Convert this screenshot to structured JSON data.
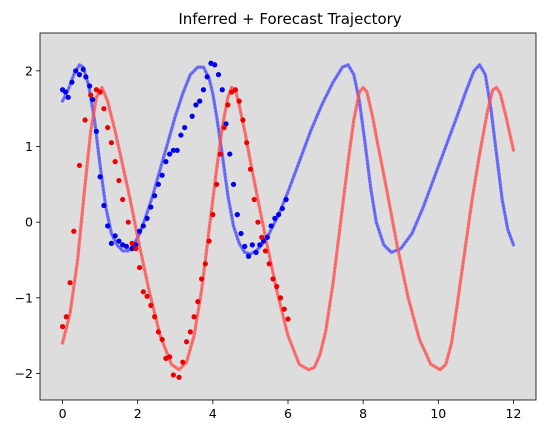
{
  "chart_data": {
    "type": "line",
    "title": "Inferred + Forecast Trajectory",
    "xlabel": "",
    "ylabel": "",
    "xlim": [
      -0.6,
      12.6
    ],
    "ylim": [
      -2.35,
      2.5
    ],
    "xticks": [
      0,
      2,
      4,
      6,
      8,
      10,
      12
    ],
    "yticks": [
      -2,
      -1,
      0,
      1,
      2
    ],
    "grid": false,
    "background": "#dddddd",
    "series": [
      {
        "kind": "inferred-line",
        "color": "#4d4dff",
        "x": [
          0,
          0.15,
          0.3,
          0.45,
          0.55,
          0.7,
          0.85,
          1.0,
          1.15,
          1.3,
          1.45,
          1.6,
          1.75,
          1.9,
          2.05,
          2.2,
          2.4,
          2.6,
          2.8,
          3.0,
          3.2,
          3.4,
          3.6,
          3.75,
          3.9,
          4.0,
          4.1,
          4.25,
          4.4,
          4.55,
          4.7,
          4.85,
          5.0,
          5.15,
          5.3,
          5.5,
          5.75,
          6.0,
          6.3,
          6.6,
          6.9,
          7.2,
          7.45,
          7.6,
          7.75,
          7.9,
          8.05,
          8.2,
          8.35,
          8.55,
          8.75,
          9.0,
          9.3,
          9.6,
          9.9,
          10.2,
          10.5,
          10.75,
          10.95,
          11.1,
          11.25,
          11.4,
          11.55,
          11.7,
          11.85,
          12.0
        ],
        "y": [
          1.6,
          1.75,
          1.95,
          2.08,
          2.05,
          1.8,
          1.35,
          0.75,
          0.2,
          -0.15,
          -0.3,
          -0.38,
          -0.38,
          -0.3,
          -0.15,
          0.05,
          0.35,
          0.7,
          1.05,
          1.4,
          1.7,
          1.95,
          2.05,
          2.05,
          1.9,
          1.7,
          1.4,
          0.9,
          0.35,
          -0.05,
          -0.28,
          -0.4,
          -0.42,
          -0.38,
          -0.3,
          -0.15,
          0.1,
          0.4,
          0.8,
          1.2,
          1.55,
          1.85,
          2.05,
          2.08,
          1.95,
          1.6,
          1.05,
          0.45,
          0.0,
          -0.3,
          -0.4,
          -0.35,
          -0.15,
          0.2,
          0.6,
          1.0,
          1.4,
          1.75,
          2.0,
          2.08,
          1.95,
          1.5,
          0.9,
          0.3,
          -0.1,
          -0.3
        ]
      },
      {
        "kind": "inferred-line",
        "color": "#ff5050",
        "x": [
          0,
          0.2,
          0.4,
          0.6,
          0.75,
          0.9,
          1.05,
          1.2,
          1.4,
          1.6,
          1.8,
          2.0,
          2.3,
          2.6,
          2.9,
          3.1,
          3.3,
          3.5,
          3.7,
          3.9,
          4.1,
          4.25,
          4.4,
          4.5,
          4.6,
          4.7,
          4.85,
          5.0,
          5.2,
          5.4,
          5.7,
          6.0,
          6.3,
          6.55,
          6.7,
          6.85,
          7.0,
          7.2,
          7.4,
          7.6,
          7.75,
          7.9,
          8.0,
          8.1,
          8.25,
          8.4,
          8.6,
          8.9,
          9.2,
          9.5,
          9.8,
          10.05,
          10.2,
          10.35,
          10.5,
          10.7,
          10.9,
          11.1,
          11.3,
          11.45,
          11.55,
          11.65,
          11.8,
          12.0
        ],
        "y": [
          -1.6,
          -1.2,
          -0.5,
          0.5,
          1.2,
          1.65,
          1.78,
          1.6,
          1.2,
          0.75,
          0.3,
          -0.2,
          -0.9,
          -1.5,
          -1.88,
          -1.95,
          -1.85,
          -1.5,
          -0.9,
          -0.1,
          0.7,
          1.25,
          1.65,
          1.78,
          1.75,
          1.55,
          1.2,
          0.8,
          0.3,
          -0.2,
          -0.9,
          -1.5,
          -1.88,
          -1.95,
          -1.92,
          -1.75,
          -1.45,
          -0.8,
          0.0,
          0.8,
          1.35,
          1.72,
          1.78,
          1.72,
          1.4,
          1.0,
          0.5,
          -0.3,
          -1.0,
          -1.55,
          -1.88,
          -1.95,
          -1.88,
          -1.6,
          -1.1,
          -0.4,
          0.3,
          0.9,
          1.45,
          1.75,
          1.78,
          1.7,
          1.4,
          0.95
        ]
      },
      {
        "kind": "observed-points",
        "color": "#0000ee",
        "x": [
          0.0,
          0.08,
          0.15,
          0.25,
          0.35,
          0.45,
          0.55,
          0.62,
          0.72,
          0.8,
          0.9,
          1.0,
          1.1,
          1.2,
          1.3,
          1.4,
          1.5,
          1.6,
          1.7,
          1.85,
          1.95,
          2.05,
          2.15,
          2.25,
          2.35,
          2.45,
          2.55,
          2.65,
          2.75,
          2.85,
          2.95,
          3.05,
          3.15,
          3.25,
          3.45,
          3.55,
          3.65,
          3.75,
          3.85,
          3.95,
          4.05,
          4.15,
          4.25,
          4.35,
          4.45,
          4.55,
          4.65,
          4.75,
          4.85,
          4.95,
          5.05,
          5.15,
          5.25,
          5.35,
          5.45,
          5.55,
          5.65,
          5.75,
          5.85,
          5.95
        ],
        "y": [
          1.75,
          1.72,
          1.65,
          1.85,
          2.0,
          1.95,
          2.02,
          1.92,
          1.8,
          1.62,
          1.2,
          0.6,
          0.22,
          -0.05,
          -0.28,
          -0.18,
          -0.25,
          -0.3,
          -0.32,
          -0.35,
          -0.3,
          -0.12,
          -0.05,
          0.05,
          0.2,
          0.35,
          0.5,
          0.62,
          0.8,
          0.9,
          0.95,
          0.95,
          1.15,
          1.25,
          1.4,
          1.55,
          1.6,
          1.75,
          1.92,
          2.1,
          2.08,
          1.95,
          1.75,
          1.3,
          0.9,
          0.5,
          0.1,
          -0.15,
          -0.32,
          -0.45,
          -0.3,
          -0.4,
          -0.3,
          -0.25,
          -0.2,
          -0.05,
          0.05,
          0.1,
          0.18,
          0.3
        ]
      },
      {
        "kind": "observed-points",
        "color": "#ee0000",
        "x": [
          0.0,
          0.1,
          0.2,
          0.3,
          0.45,
          0.6,
          0.75,
          0.9,
          1.0,
          1.1,
          1.2,
          1.3,
          1.4,
          1.5,
          1.6,
          1.75,
          1.85,
          1.95,
          2.05,
          2.15,
          2.25,
          2.35,
          2.45,
          2.55,
          2.65,
          2.75,
          2.85,
          2.95,
          3.1,
          3.2,
          3.3,
          3.4,
          3.5,
          3.6,
          3.7,
          3.8,
          3.9,
          4.0,
          4.1,
          4.2,
          4.3,
          4.4,
          4.5,
          4.6,
          4.7,
          4.8,
          4.9,
          5.0,
          5.1,
          5.2,
          5.3,
          5.4,
          5.5,
          5.6,
          5.7,
          5.8,
          5.9,
          6.0
        ],
        "y": [
          -1.38,
          -1.25,
          -0.8,
          -0.12,
          0.75,
          1.35,
          1.68,
          1.75,
          1.72,
          1.5,
          1.25,
          1.05,
          0.8,
          0.55,
          0.3,
          0.0,
          -0.28,
          -0.35,
          -0.6,
          -0.92,
          -0.98,
          -1.1,
          -1.25,
          -1.45,
          -1.55,
          -1.8,
          -1.78,
          -2.02,
          -2.05,
          -1.85,
          -1.58,
          -1.45,
          -1.25,
          -1.05,
          -0.75,
          -0.55,
          -0.25,
          0.1,
          0.5,
          0.9,
          1.25,
          1.55,
          1.72,
          1.75,
          1.6,
          1.35,
          1.05,
          0.7,
          0.3,
          0.0,
          -0.2,
          -0.38,
          -0.55,
          -0.75,
          -0.85,
          -1.0,
          -1.15,
          -1.28
        ]
      }
    ]
  }
}
